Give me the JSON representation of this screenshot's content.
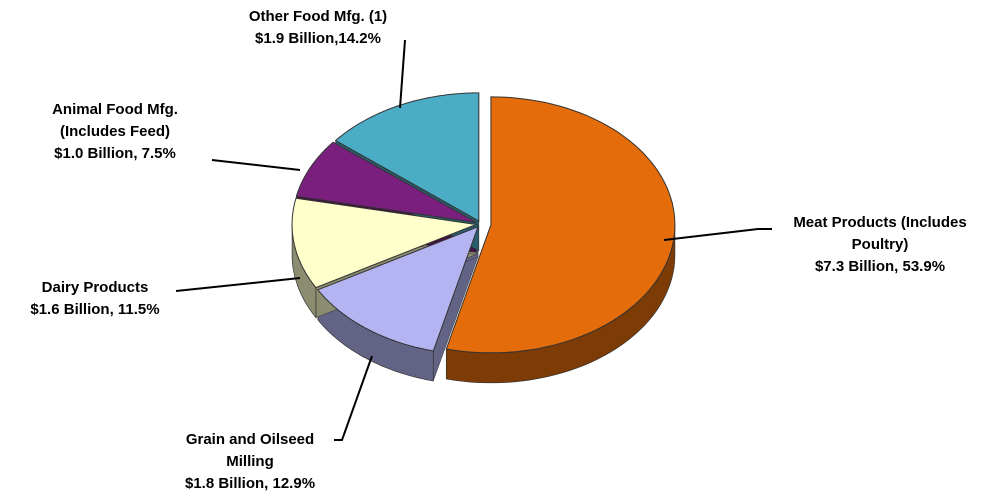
{
  "chart_data": {
    "type": "pie",
    "categories": [
      [
        "Meat Products (Includes",
        "Poultry)"
      ],
      [
        "Grain and Oilseed",
        "Milling"
      ],
      [
        "Dairy Products"
      ],
      [
        "Animal Food Mfg.",
        "(Includes Feed)"
      ],
      [
        "Other Food Mfg. (1)"
      ]
    ],
    "values": [
      53.9,
      12.9,
      11.5,
      7.5,
      14.2
    ],
    "value_labels": [
      "$7.3 Billion, 53.9%",
      "$1.8 Billion, 12.9%",
      "$1.6 Billion, 11.5%",
      "$1.0 Billion, 7.5%",
      "$1.9 Billion,14.2%"
    ],
    "colors": [
      "#e46c0a",
      "#b4b4f2",
      "#ffffcc",
      "#7b1f7e",
      "#4bacc6"
    ]
  }
}
